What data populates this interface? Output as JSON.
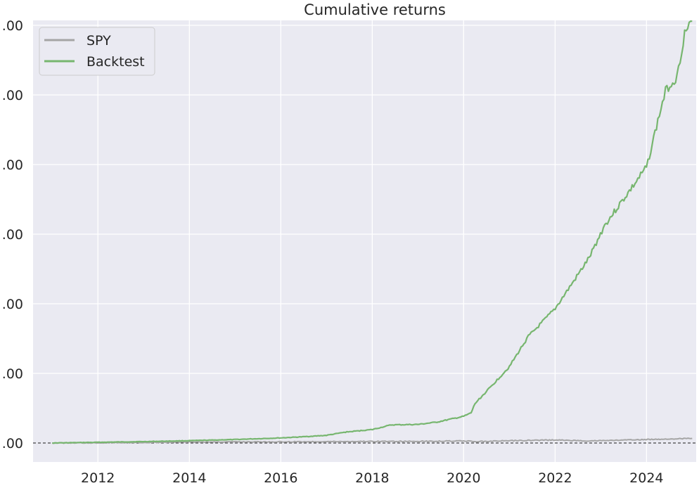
{
  "chart_data": {
    "type": "line",
    "title": "Cumulative returns",
    "xlabel": "",
    "ylabel": "",
    "x_ticks": [
      "2012",
      "2014",
      "2016",
      "2018",
      "2020",
      "2022",
      "2024"
    ],
    "y_ticks": [
      ".00",
      ".00",
      ".00",
      ".00",
      ".00",
      ".00",
      ".00"
    ],
    "xlim": [
      "2010-08-01",
      "2025-02-01"
    ],
    "grid": true,
    "legend_position": "top-left",
    "baseline": "dashed horizontal line at bottom",
    "series": [
      {
        "name": "SPY",
        "color": "#a5a5a5",
        "points": [
          [
            "2011-01-01",
            0.0
          ],
          [
            "2012-01-01",
            0.01
          ],
          [
            "2013-01-01",
            0.02
          ],
          [
            "2014-01-01",
            0.04
          ],
          [
            "2015-01-01",
            0.05
          ],
          [
            "2016-01-01",
            0.05
          ],
          [
            "2017-01-01",
            0.06
          ],
          [
            "2018-01-01",
            0.07
          ],
          [
            "2019-01-01",
            0.07
          ],
          [
            "2020-01-01",
            0.09
          ],
          [
            "2020-04-01",
            0.06
          ],
          [
            "2021-01-01",
            0.1
          ],
          [
            "2022-01-01",
            0.13
          ],
          [
            "2022-10-01",
            0.09
          ],
          [
            "2023-06-01",
            0.12
          ],
          [
            "2024-06-01",
            0.17
          ],
          [
            "2024-12-31",
            0.2
          ]
        ]
      },
      {
        "name": "Backtest",
        "color": "#77b66f",
        "points": [
          [
            "2011-01-01",
            0.0
          ],
          [
            "2012-01-01",
            0.03
          ],
          [
            "2013-01-01",
            0.06
          ],
          [
            "2014-01-01",
            0.1
          ],
          [
            "2015-01-01",
            0.15
          ],
          [
            "2016-01-01",
            0.22
          ],
          [
            "2016-06-01",
            0.26
          ],
          [
            "2017-01-01",
            0.33
          ],
          [
            "2017-06-01",
            0.47
          ],
          [
            "2018-01-01",
            0.58
          ],
          [
            "2018-06-01",
            0.78
          ],
          [
            "2019-01-01",
            0.8
          ],
          [
            "2019-06-01",
            0.9
          ],
          [
            "2020-01-01",
            1.15
          ],
          [
            "2020-03-01",
            1.3
          ],
          [
            "2020-04-01",
            1.7
          ],
          [
            "2020-08-01",
            2.4
          ],
          [
            "2021-01-01",
            3.3
          ],
          [
            "2021-06-01",
            4.6
          ],
          [
            "2021-09-01",
            5.1
          ],
          [
            "2022-01-01",
            5.8
          ],
          [
            "2022-06-01",
            7.0
          ],
          [
            "2022-10-01",
            8.0
          ],
          [
            "2023-02-01",
            9.4
          ],
          [
            "2023-06-01",
            10.3
          ],
          [
            "2023-10-01",
            11.2
          ],
          [
            "2024-01-01",
            11.9
          ],
          [
            "2024-04-01",
            13.9
          ],
          [
            "2024-06-01",
            15.2
          ],
          [
            "2024-09-01",
            15.8
          ],
          [
            "2024-11-01",
            17.7
          ],
          [
            "2024-12-31",
            18.2
          ]
        ]
      }
    ]
  }
}
